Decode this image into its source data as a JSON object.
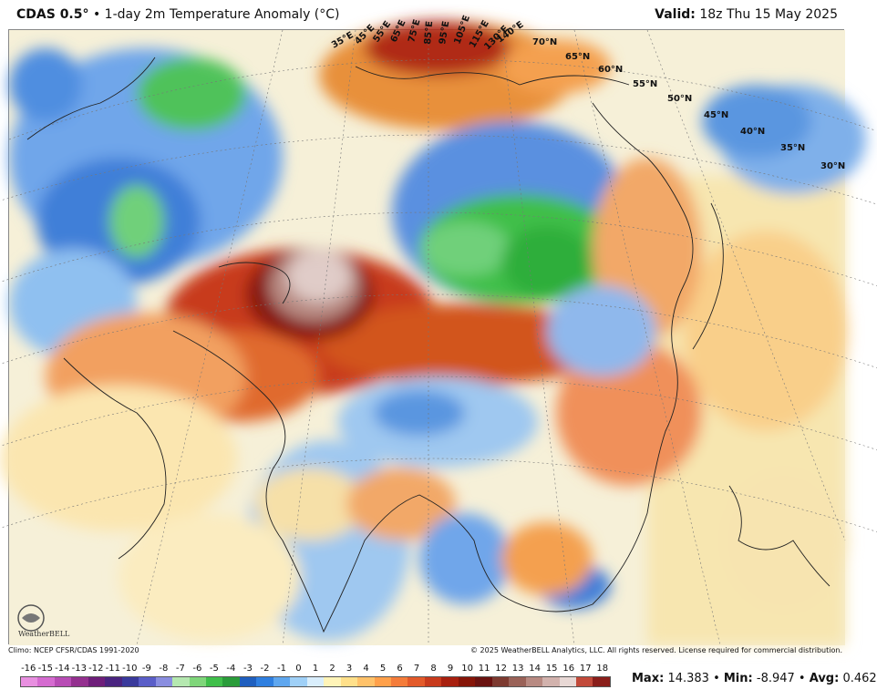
{
  "header": {
    "product": "CDAS 0.5",
    "degree_mark": "°",
    "description": " • 1-day 2m Temperature Anomaly (°C)",
    "valid_label": "Valid:",
    "valid_time": "18z Thu 15 May 2025"
  },
  "map": {
    "lat_labels": [
      "70°N",
      "65°N",
      "60°N",
      "55°N",
      "50°N",
      "45°N",
      "40°N",
      "35°N",
      "30°N"
    ],
    "lon_labels": [
      "35°E",
      "45°E",
      "55°E",
      "65°E",
      "75°E",
      "85°E",
      "95°E",
      "105°E",
      "115°E",
      "130°E",
      "140°E"
    ],
    "logo_text": "WeatherBELL"
  },
  "footer": {
    "climo": "Climo: NCEP CFSR/CDAS 1991-2020",
    "copyright": "© 2025 WeatherBELL Analytics, LLC. All rights reserved. License required for commercial distribution."
  },
  "legend": {
    "ticks": [
      "-16",
      "-15",
      "-14",
      "-13",
      "-12",
      "-11",
      "-10",
      "-9",
      "-8",
      "-7",
      "-6",
      "-5",
      "-4",
      "-3",
      "-2",
      "-1",
      "0",
      "1",
      "2",
      "3",
      "4",
      "5",
      "6",
      "7",
      "8",
      "9",
      "10",
      "11",
      "12",
      "13",
      "14",
      "15",
      "16",
      "17",
      "18"
    ],
    "colors": [
      "#e88fe0",
      "#d56bd0",
      "#b84cb5",
      "#94308f",
      "#6e1e7a",
      "#4a2480",
      "#3a3a9c",
      "#5a5ec8",
      "#8a8ee0",
      "#b5e8b0",
      "#7fd67a",
      "#3fbf4a",
      "#2a9c3a",
      "#1f5fbf",
      "#2f7fe0",
      "#5fa7ef",
      "#9fd0f7",
      "#d9eefc",
      "#fff4b8",
      "#ffe08a",
      "#ffc26a",
      "#ffa04a",
      "#f47c3a",
      "#e35a2a",
      "#c83a1c",
      "#a8200f",
      "#861508",
      "#6a1210",
      "#7d3a30",
      "#9a6258",
      "#b88a82",
      "#d2b2ad",
      "#e8d8d5",
      "#c24a3a",
      "#8a1e1a"
    ]
  },
  "stats": {
    "max_label": "Max:",
    "max_value": "14.383",
    "min_label": "Min:",
    "min_value": "-8.947",
    "avg_label": "Avg:",
    "avg_value": "0.462"
  }
}
